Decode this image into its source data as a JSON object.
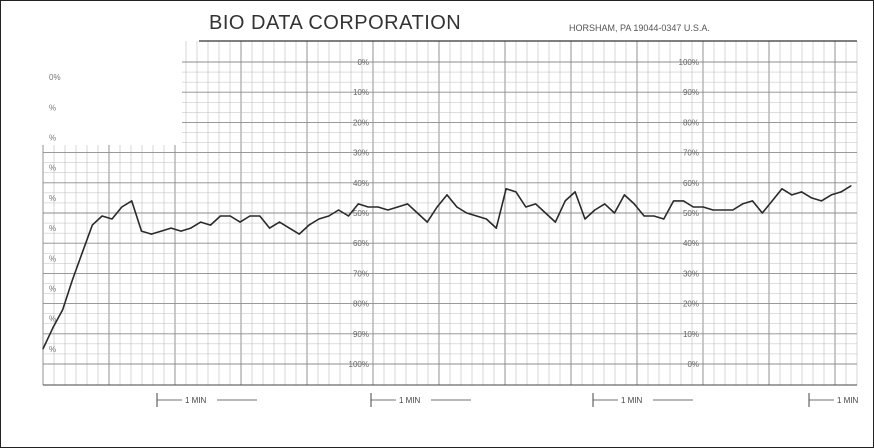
{
  "header": {
    "company": "BIO DATA CORPORATION",
    "location": "HORSHAM, PA 19044-0347 U.S.A."
  },
  "scales": {
    "left_partial_labels": [
      "0%",
      "%",
      "%",
      "%",
      "%",
      "%",
      "%",
      "%",
      "%",
      "%"
    ],
    "center_labels": [
      "0%",
      "10%",
      "20%",
      "30%",
      "40%",
      "50%",
      "60%",
      "70%",
      "80%",
      "90%",
      "100%"
    ],
    "right_labels": [
      "100%",
      "90%",
      "80%",
      "70%",
      "60%",
      "50%",
      "40%",
      "30%",
      "20%",
      "10%",
      "0%"
    ]
  },
  "time_markers": [
    "1 MIN",
    "1 MIN",
    "1 MIN",
    "1 MIN"
  ],
  "colors": {
    "trace": "#2a2a2a",
    "grid": "#bcbcbc",
    "grid_major": "#8c8c8c",
    "paper": "#ffffff"
  },
  "chart_data": {
    "type": "line",
    "title": "",
    "xlabel": "",
    "ylabel": "",
    "y_axis_note": "center scale reads 0% at top to 100% at bottom; values below are in center-scale %",
    "ylim": [
      0,
      100
    ],
    "x": [
      0.0,
      0.2,
      0.4,
      0.6,
      0.8,
      1.0,
      1.2,
      1.4,
      1.6,
      1.8,
      2.0,
      2.2,
      2.4,
      2.6,
      2.8,
      3.0,
      3.2,
      3.4,
      3.6,
      3.8,
      4.0,
      4.2,
      4.4,
      4.6,
      4.8,
      5.0,
      5.2,
      5.4,
      5.6,
      5.8,
      6.0,
      6.2,
      6.4,
      6.6,
      6.8,
      7.0,
      7.2,
      7.4,
      7.6,
      7.8,
      8.0,
      8.2,
      8.4,
      8.6,
      8.8,
      9.0,
      9.2,
      9.4,
      9.6,
      9.8,
      10.0,
      10.2,
      10.4,
      10.6,
      10.8,
      11.0,
      11.2,
      11.4,
      11.6,
      11.8,
      12.0,
      12.2,
      12.4,
      12.6,
      12.8,
      13.0,
      13.2,
      13.4,
      13.6,
      13.8,
      14.0,
      14.2,
      14.4,
      14.6,
      14.8,
      15.0,
      15.2,
      15.4,
      15.6,
      15.8,
      16.0,
      16.2,
      16.4
    ],
    "values": [
      95,
      88,
      82,
      72,
      63,
      54,
      51,
      52,
      48,
      46,
      56,
      57,
      56,
      55,
      56,
      55,
      53,
      54,
      51,
      51,
      53,
      51,
      51,
      55,
      53,
      55,
      57,
      54,
      52,
      51,
      49,
      51,
      47,
      48,
      48,
      49,
      48,
      47,
      50,
      53,
      48,
      44,
      48,
      50,
      51,
      52,
      55,
      42,
      43,
      48,
      47,
      50,
      53,
      46,
      43,
      52,
      49,
      47,
      50,
      44,
      47,
      51,
      51,
      52,
      46,
      46,
      48,
      48,
      49,
      49,
      49,
      47,
      46,
      50,
      46,
      42,
      44,
      43,
      45,
      46,
      44,
      43,
      41
    ]
  }
}
